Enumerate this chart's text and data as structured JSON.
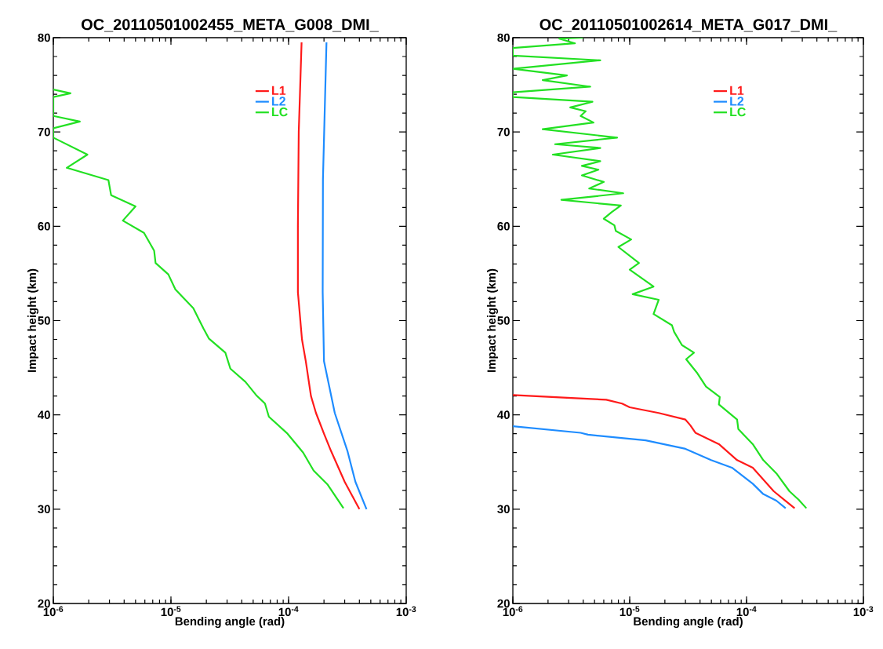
{
  "chart_data": [
    {
      "type": "line",
      "title": "OC_20110501002455_META_G008_DMI_",
      "xlabel": "Bending angle (rad)",
      "ylabel": "Impact height (km)",
      "log": "x",
      "legend": "top",
      "line_style": "solid",
      "xlim": [
        1e-06,
        0.001
      ],
      "ylim": [
        20,
        80
      ],
      "xticks": [
        {
          "value": 1e-06,
          "label": "10$^{-6}$"
        },
        {
          "value": 1e-05,
          "label": "10$^{-5}$"
        },
        {
          "value": 0.0001,
          "label": "10$^{-4}$"
        },
        {
          "value": 0.001,
          "label": "10$^{-3}$"
        }
      ],
      "yticks": [
        20,
        30,
        40,
        50,
        60,
        70,
        80
      ],
      "series": [
        {
          "name": "L1",
          "color": "#ff1a1a",
          "x": [
            0.000129,
            0.000122,
            0.00012,
            0.00012,
            0.00013,
            0.00014,
            0.000155,
            0.000171,
            0.0002,
            0.000229,
            0.0003,
            0.0004
          ],
          "values": [
            79.5,
            70,
            60,
            53,
            48,
            45.7,
            42,
            40.2,
            38,
            36.2,
            32.9,
            30
          ]
        },
        {
          "name": "L2",
          "color": "#1e8cff",
          "x": [
            0.00021,
            0.000196,
            0.000195,
            0.0002,
            0.000247,
            0.000316,
            0.00037,
            0.00046
          ],
          "values": [
            79.5,
            65,
            53,
            45.7,
            40.2,
            36.2,
            32.9,
            30
          ]
        },
        {
          "name": "LC",
          "color": "#22e022",
          "x": [
            1e-06,
            1.4e-06,
            1e-06,
            1e-06,
            1.68e-06,
            1e-06,
            1e-06,
            1.95e-06,
            1.3e-06,
            2.94e-06,
            3.1e-06,
            5e-06,
            3.9e-06,
            5.9e-06,
            7.2e-06,
            7.4e-06,
            9.5e-06,
            1.09e-05,
            1.55e-05,
            1.9e-05,
            2.1e-05,
            2.9e-05,
            3.2e-05,
            4.3e-05,
            5.3e-05,
            6.3e-05,
            6.8e-05,
            9.8e-05,
            0.000133,
            0.000163,
            0.000215,
            0.000293
          ],
          "values": [
            74.5,
            74.1,
            73.7,
            71.7,
            71.1,
            70.4,
            69.4,
            67.6,
            66.2,
            64.9,
            63.3,
            62.1,
            60.6,
            59.3,
            57.4,
            56.1,
            54.9,
            53.3,
            51.3,
            49.1,
            48.1,
            46.6,
            44.9,
            43.5,
            42.1,
            41.2,
            39.8,
            38,
            36,
            34.1,
            32.6,
            30.1
          ]
        }
      ]
    },
    {
      "type": "line",
      "title": "OC_20110501002614_META_G017_DMI_",
      "xlabel": "Bending angle (rad)",
      "ylabel": "Impact height (km)",
      "log": "x",
      "legend": "top",
      "line_style": "solid",
      "xlim": [
        1e-06,
        0.001
      ],
      "ylim": [
        20,
        80
      ],
      "xticks": [
        {
          "value": 1e-06,
          "label": "10$^{-6}$"
        },
        {
          "value": 1e-05,
          "label": "10$^{-5}$"
        },
        {
          "value": 0.0001,
          "label": "10$^{-4}$"
        },
        {
          "value": 0.001,
          "label": "10$^{-3}$"
        }
      ],
      "yticks": [
        20,
        30,
        40,
        50,
        60,
        70,
        80
      ],
      "series": [
        {
          "name": "L1",
          "color": "#ff1a1a",
          "x": [
            1e-06,
            6.3e-06,
            8.6e-06,
            1e-05,
            1.77e-05,
            3e-05,
            3.3e-05,
            3.65e-05,
            5.8e-05,
            8.3e-05,
            0.000113,
            0.000171,
            0.00021,
            0.000258
          ],
          "values": [
            42.1,
            41.6,
            41.2,
            40.8,
            40.2,
            39.5,
            38.9,
            38.1,
            36.9,
            35.2,
            34.4,
            31.9,
            31,
            30.1
          ]
        },
        {
          "name": "L2",
          "color": "#1e8cff",
          "x": [
            1e-06,
            3.8e-06,
            4.4e-06,
            1.37e-05,
            3e-05,
            4.97e-05,
            7.5e-05,
            0.000113,
            0.000139,
            0.00018,
            0.000216
          ],
          "values": [
            38.8,
            38.1,
            37.9,
            37.3,
            36.4,
            35.2,
            34.4,
            32.7,
            31.6,
            30.9,
            30.1
          ]
        },
        {
          "name": "LC",
          "color": "#22e022",
          "x": [
            4e-06,
            2.5e-06,
            3.4e-06,
            1e-06,
            1e-06,
            5.6e-06,
            1e-06,
            2.9e-06,
            1.8e-06,
            4.6e-06,
            1e-06,
            1e-06,
            4.8e-06,
            3.1e-06,
            4.2e-06,
            3.8e-06,
            4.9e-06,
            1.8e-06,
            7.8e-06,
            2.3e-06,
            5.6e-06,
            2.2e-06,
            5.6e-06,
            3.9e-06,
            5.4e-06,
            3.9e-06,
            6e-06,
            4.5e-06,
            8.8e-06,
            2.6e-06,
            8.4e-06,
            7e-06,
            6e-06,
            7.4e-06,
            7.6e-06,
            1.03e-05,
            8e-06,
            1.2e-05,
            1e-05,
            1.6e-05,
            1.06e-05,
            1.77e-05,
            1.6e-05,
            2.3e-05,
            2.4e-05,
            2.8e-05,
            3.55e-05,
            3.04e-05,
            3.8e-05,
            4.5e-05,
            5.9e-05,
            5.8e-05,
            8.3e-05,
            8.5e-05,
            0.000113,
            0.000139,
            0.00018,
            0.000233,
            0.000279,
            0.000325
          ],
          "values": [
            80,
            79.9,
            79.4,
            78.9,
            78.1,
            77.6,
            76.7,
            76,
            75.5,
            74.8,
            74.2,
            73.7,
            73.2,
            72.6,
            72.2,
            71.7,
            71,
            70.3,
            69.4,
            68.7,
            68.3,
            67.6,
            66.9,
            66.4,
            66,
            65.4,
            64.7,
            64,
            63.5,
            62.8,
            62.2,
            61.5,
            60.8,
            60.1,
            59.5,
            58.6,
            57.8,
            56.1,
            55.4,
            53.6,
            52.8,
            52.2,
            50.7,
            49.5,
            48.8,
            47.4,
            46.6,
            45.9,
            44.4,
            43,
            41.9,
            41.1,
            39.5,
            38.5,
            36.9,
            35.2,
            33.8,
            31.9,
            31,
            30.1
          ]
        }
      ]
    }
  ]
}
